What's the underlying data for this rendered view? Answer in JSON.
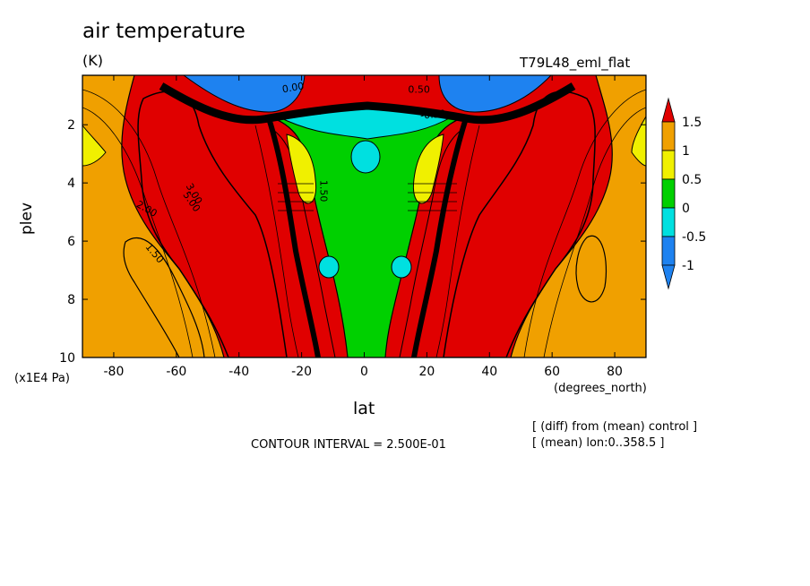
{
  "chart_data": {
    "type": "heatmap",
    "title": "air temperature",
    "units": "(K)",
    "experiment": "T79L48_eml_flat",
    "xlabel": "lat",
    "ylabel": "plev",
    "x_units": "(degrees_north)",
    "y_multiplier": "(x1E4 Pa)",
    "xlim": [
      -90,
      90
    ],
    "ylim": [
      10,
      0.3
    ],
    "x_ticks": [
      "-80",
      "-60",
      "-40",
      "-20",
      "0",
      "20",
      "40",
      "60",
      "80"
    ],
    "x_tick_values": [
      -80,
      -60,
      -40,
      -20,
      0,
      20,
      40,
      60,
      80
    ],
    "y_ticks": [
      "2",
      "4",
      "6",
      "8",
      "10"
    ],
    "y_tick_values": [
      2,
      4,
      6,
      8,
      10
    ],
    "colorbar": {
      "labels": [
        "1.5",
        "1",
        "0.5",
        "0",
        "-0.5",
        "-1"
      ],
      "levels": [
        1.5,
        1,
        0.5,
        0,
        -0.5,
        -1
      ],
      "colors": [
        "#e00000",
        "#f0a000",
        "#f0f000",
        "#00d000",
        "#00e0e0",
        "#1e82f0",
        "#0000c8"
      ]
    },
    "contour_labels": [
      "2.00",
      "1.50",
      "5.00",
      "3.00",
      "0.00",
      "0.00",
      "-0.50",
      "0.50",
      "1.50"
    ],
    "contour_interval": "CONTOUR INTERVAL = 2.500E-01",
    "notes": [
      "[ (diff) from (mean) control ]",
      "[ (mean) lon:0..358.5 ]"
    ],
    "grid": false
  }
}
